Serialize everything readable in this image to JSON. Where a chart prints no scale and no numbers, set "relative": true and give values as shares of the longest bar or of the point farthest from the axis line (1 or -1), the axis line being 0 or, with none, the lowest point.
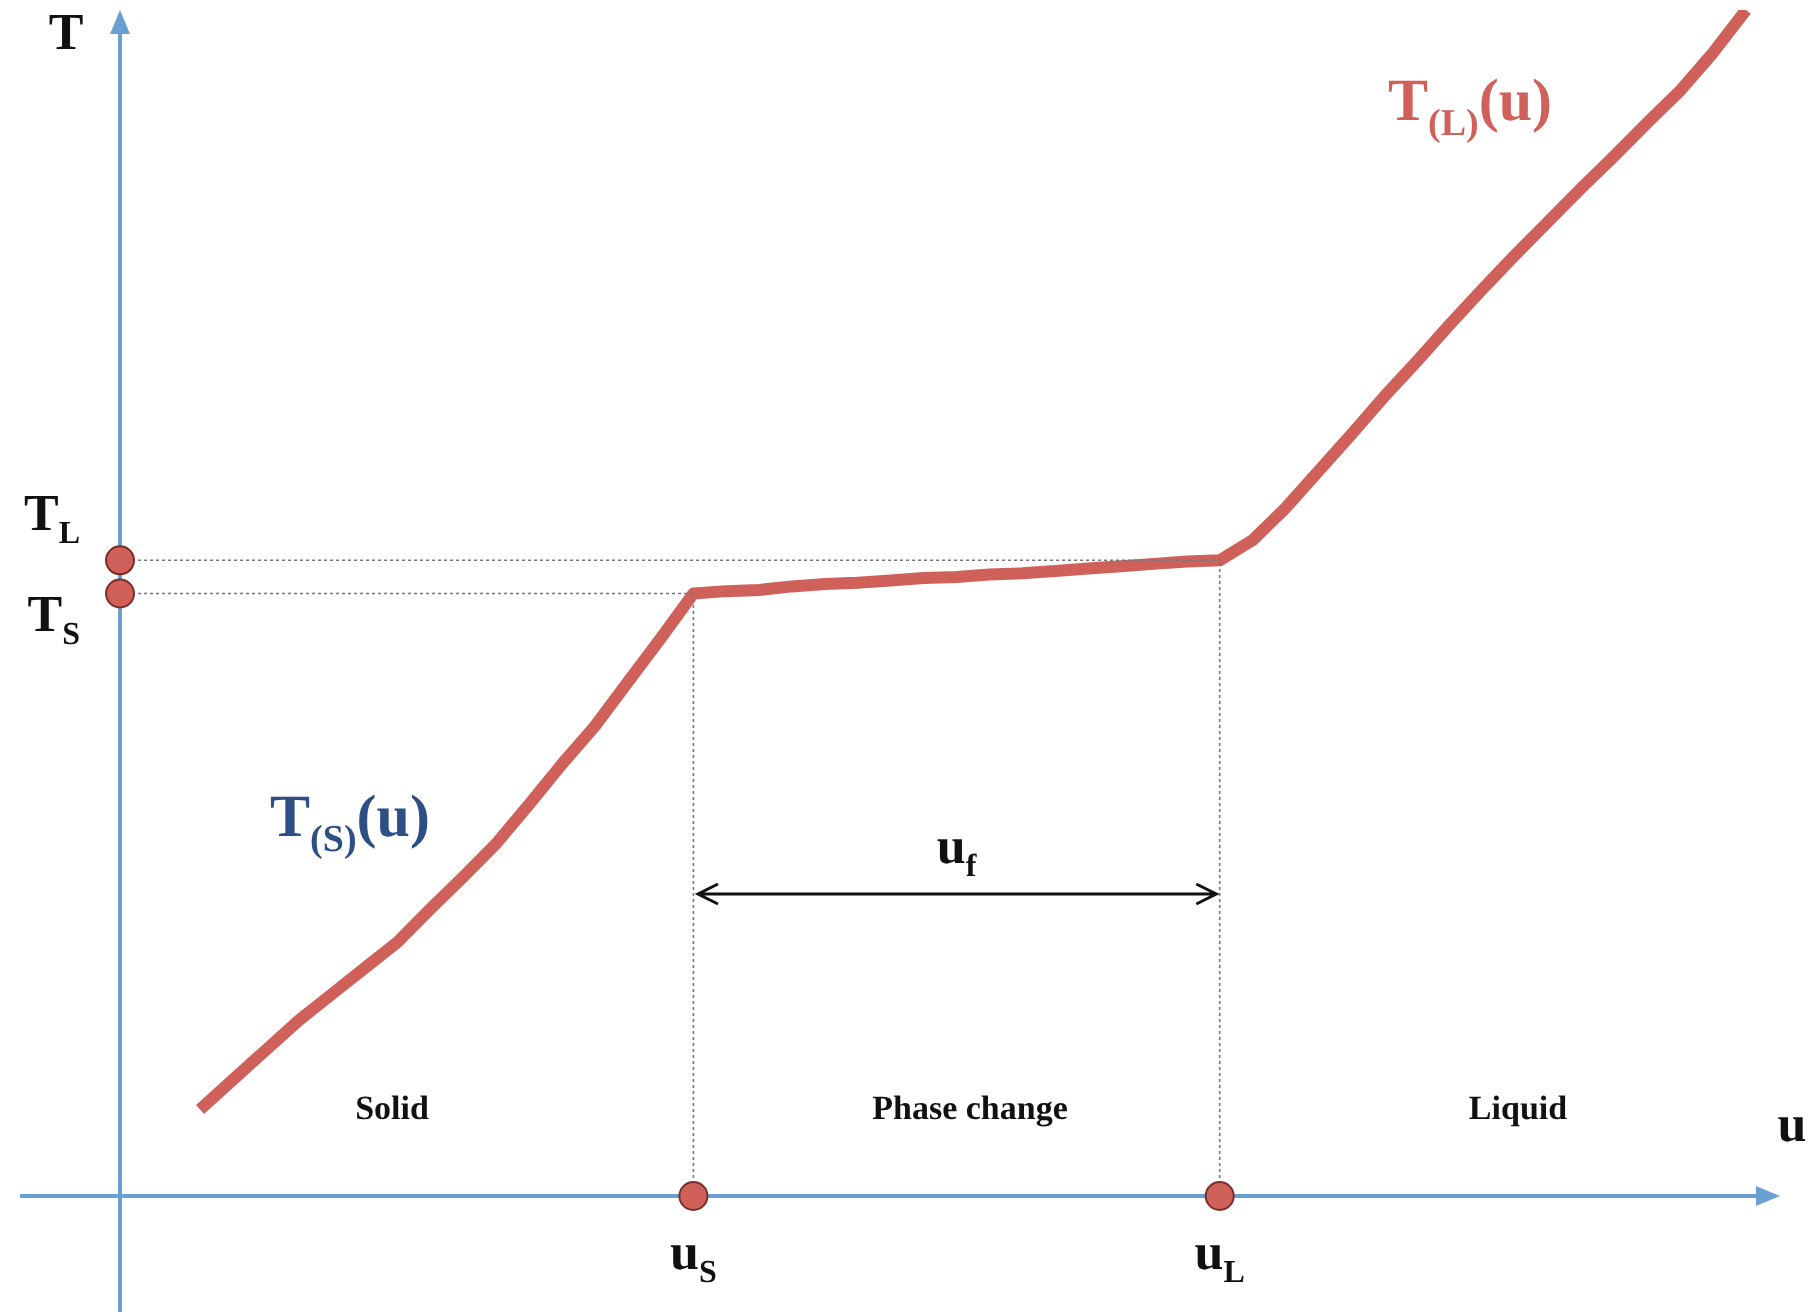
{
  "chart_data": {
    "type": "line",
    "relative": true,
    "xlabel": "u",
    "ylabel": "T",
    "categories": [
      null,
      null,
      null,
      null,
      null,
      null,
      null,
      null,
      null,
      null,
      null,
      null,
      null,
      null,
      null,
      "u$_{S}$",
      null,
      null,
      null,
      null,
      null,
      null,
      null,
      null,
      null,
      null,
      null,
      null,
      null,
      null,
      null,
      "u$_{L}$",
      null,
      null,
      null,
      null,
      null,
      null,
      null,
      null,
      null,
      null,
      null,
      null,
      null,
      null,
      null,
      null
    ],
    "series": [
      {
        "color": "#d0605a",
        "values": [
          0.073,
          0.098,
          0.123,
          0.148,
          0.17,
          0.192,
          0.214,
          0.242,
          0.269,
          0.297,
          0.33,
          0.364,
          0.396,
          0.433,
          0.47,
          0.508,
          0.51,
          0.511,
          0.514,
          0.516,
          0.517,
          0.519,
          0.521,
          0.522,
          0.524,
          0.525,
          0.527,
          0.529,
          0.531,
          0.533,
          0.535,
          0.536,
          0.553,
          0.58,
          0.611,
          0.642,
          0.674,
          0.704,
          0.735,
          0.765,
          0.794,
          0.822,
          0.85,
          0.877,
          0.905,
          0.932,
          0.964,
          1
        ]
      }
    ],
    "annotations": [
      {
        "text": "T$_{S}$",
        "x": "u$_{S}$",
        "y": 0.508
      },
      {
        "text": "T$_{L}$",
        "x": "u$_{L}$",
        "y": 0.536
      },
      "T$_{(S)}$(u)",
      "T$_{(L)}$(u)",
      "u$_{f}$",
      "Solid",
      "Phase change",
      "Liquid"
    ],
    "marker": "none",
    "line_style": "solid"
  }
}
